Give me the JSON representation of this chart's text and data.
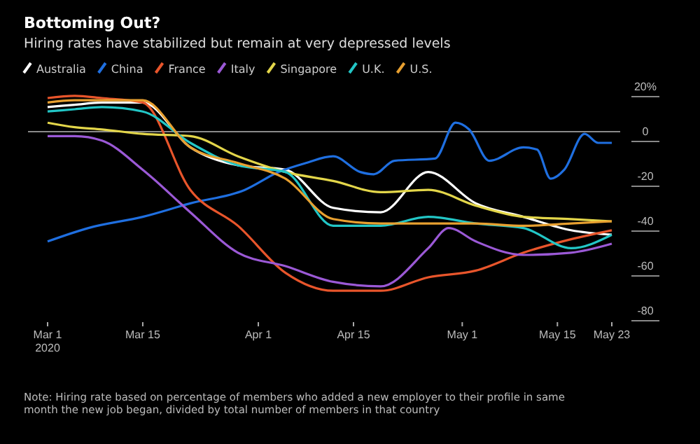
{
  "chart_data": {
    "type": "line",
    "title": "Bottoming Out?",
    "subtitle": "Hiring rates have stabilized but remain at very depressed levels",
    "annotations": [
      "Note: Hiring rate based on percentage of members who added a new employer to their profile in same month the new job began, divided by total number of members in that country"
    ],
    "x": [
      "2020-03-01",
      "2020-03-05",
      "2020-03-09",
      "2020-03-15",
      "2020-03-22",
      "2020-03-29",
      "2020-04-05",
      "2020-04-12",
      "2020-04-19",
      "2020-04-26",
      "2020-05-03",
      "2020-05-10",
      "2020-05-17",
      "2020-05-23"
    ],
    "series": [
      {
        "name": "Australia",
        "color": "#ffffff",
        "values": [
          11,
          12,
          13,
          13,
          -7,
          -15,
          -17,
          -34,
          -36,
          -18,
          -32,
          -38,
          -44,
          -46
        ]
      },
      {
        "name": "China",
        "color": "#1f6fe0",
        "x": [
          "2020-03-01",
          "2020-03-07",
          "2020-03-15",
          "2020-03-22",
          "2020-03-30",
          "2020-04-04",
          "2020-04-08",
          "2020-04-12",
          "2020-04-16",
          "2020-04-18",
          "2020-04-21",
          "2020-04-27",
          "2020-04-30",
          "2020-05-02",
          "2020-05-05",
          "2020-05-10",
          "2020-05-12",
          "2020-05-14",
          "2020-05-16",
          "2020-05-19",
          "2020-05-21",
          "2020-05-23"
        ],
        "values": [
          -49,
          -43,
          -38,
          -32,
          -26,
          -18,
          -14,
          -11,
          -18,
          -19,
          -13,
          -12,
          4,
          1,
          -13,
          -7,
          -8,
          -21,
          -17,
          -1,
          -5,
          -5
        ]
      },
      {
        "name": "France",
        "color": "#e8552b",
        "values": [
          15,
          16,
          15,
          13,
          -26,
          -42,
          -63,
          -71,
          -71,
          -65,
          -62,
          -54,
          -48,
          -44
        ]
      },
      {
        "name": "Italy",
        "color": "#9b59d6",
        "x": [
          "2020-03-01",
          "2020-03-05",
          "2020-03-09",
          "2020-03-15",
          "2020-03-22",
          "2020-03-29",
          "2020-04-05",
          "2020-04-12",
          "2020-04-19",
          "2020-04-26",
          "2020-04-29",
          "2020-05-03",
          "2020-05-10",
          "2020-05-17",
          "2020-05-23"
        ],
        "values": [
          -2,
          -2,
          -4,
          -17,
          -36,
          -54,
          -60,
          -67,
          -69,
          -52,
          -43,
          -49,
          -55,
          -54,
          -50
        ]
      },
      {
        "name": "Singapore",
        "color": "#e3d64a",
        "values": [
          4,
          2,
          1,
          -1,
          -2,
          -11,
          -18,
          -22,
          -27,
          -26,
          -33,
          -38,
          -39,
          -40
        ]
      },
      {
        "name": "U.K.",
        "color": "#22c6c6",
        "values": [
          9,
          10,
          11,
          9,
          -5,
          -15,
          -18,
          -42,
          -42,
          -38,
          -41,
          -43,
          -52,
          -46
        ]
      },
      {
        "name": "U.S.",
        "color": "#e8a030",
        "values": [
          13,
          14,
          14,
          14,
          -7,
          -14,
          -21,
          -39,
          -41,
          -41,
          -41,
          -42,
          -41,
          -40
        ]
      }
    ],
    "xlim": [
      "2020-03-01",
      "2020-05-23"
    ],
    "xticks": [
      {
        "value": "2020-03-01",
        "label": "Mar 1\n2020"
      },
      {
        "value": "2020-03-15",
        "label": "Mar 15"
      },
      {
        "value": "2020-04-01",
        "label": "Apr 1"
      },
      {
        "value": "2020-04-15",
        "label": "Apr 15"
      },
      {
        "value": "2020-05-01",
        "label": "May 1"
      },
      {
        "value": "2020-05-15",
        "label": "May 15"
      },
      {
        "value": "2020-05-23",
        "label": "May 23"
      }
    ],
    "ylim": [
      -80,
      20
    ],
    "yticks": [
      {
        "value": 20,
        "label": "20%"
      },
      0,
      -20,
      -40,
      -60,
      -80
    ],
    "ref_lines": [
      {
        "axis": "y",
        "value": 0,
        "color": "#8a8a8a"
      }
    ],
    "legend": "top left",
    "grid": false,
    "line_style": "solid",
    "marker": "none"
  }
}
